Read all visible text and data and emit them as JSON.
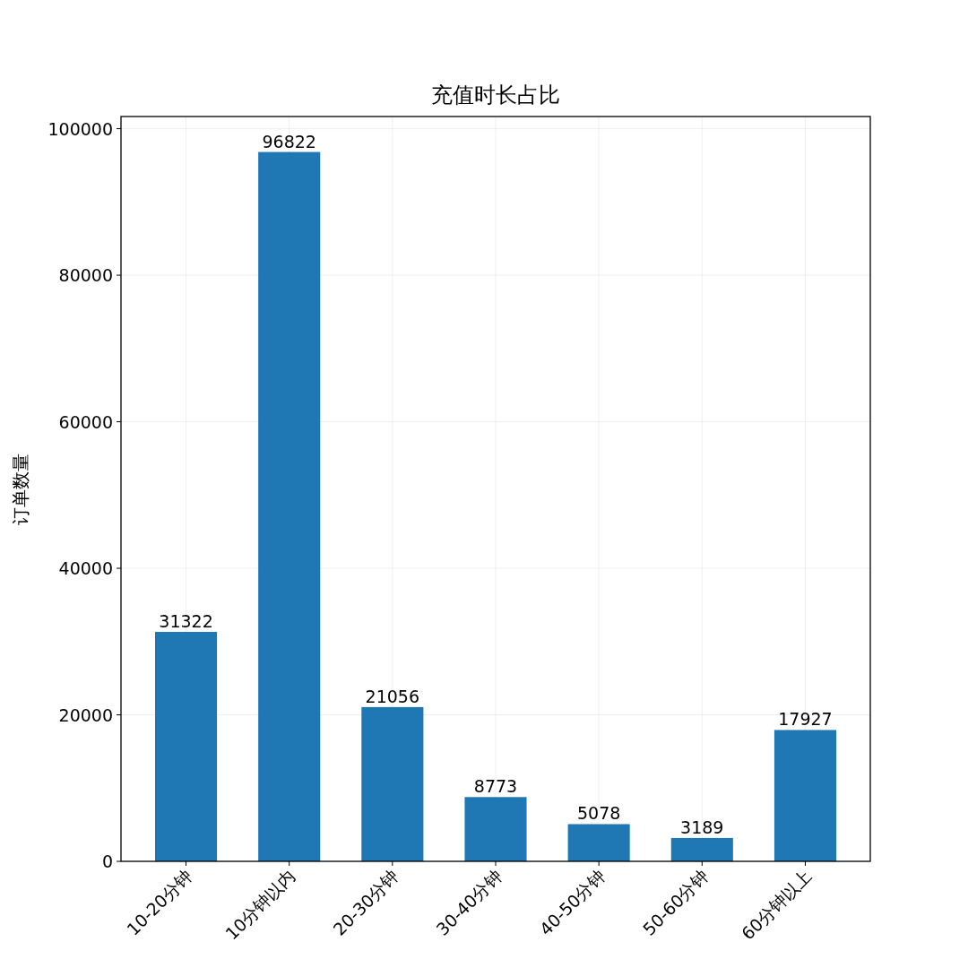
{
  "chart_data": {
    "type": "bar",
    "title": "充值时长占比",
    "ylabel": "订单数量",
    "categories": [
      "10-20分钟",
      "10分钟以内",
      "20-30分钟",
      "30-40分钟",
      "40-50分钟",
      "50-60分钟",
      "60分钟以上"
    ],
    "values": [
      31322,
      96822,
      21056,
      8773,
      5078,
      3189,
      17927
    ],
    "color": "#1f77b4",
    "ylim": [
      0,
      101663
    ],
    "yticks": [
      0,
      20000,
      40000,
      60000,
      80000,
      100000
    ],
    "grid": true,
    "data_labels": true
  }
}
